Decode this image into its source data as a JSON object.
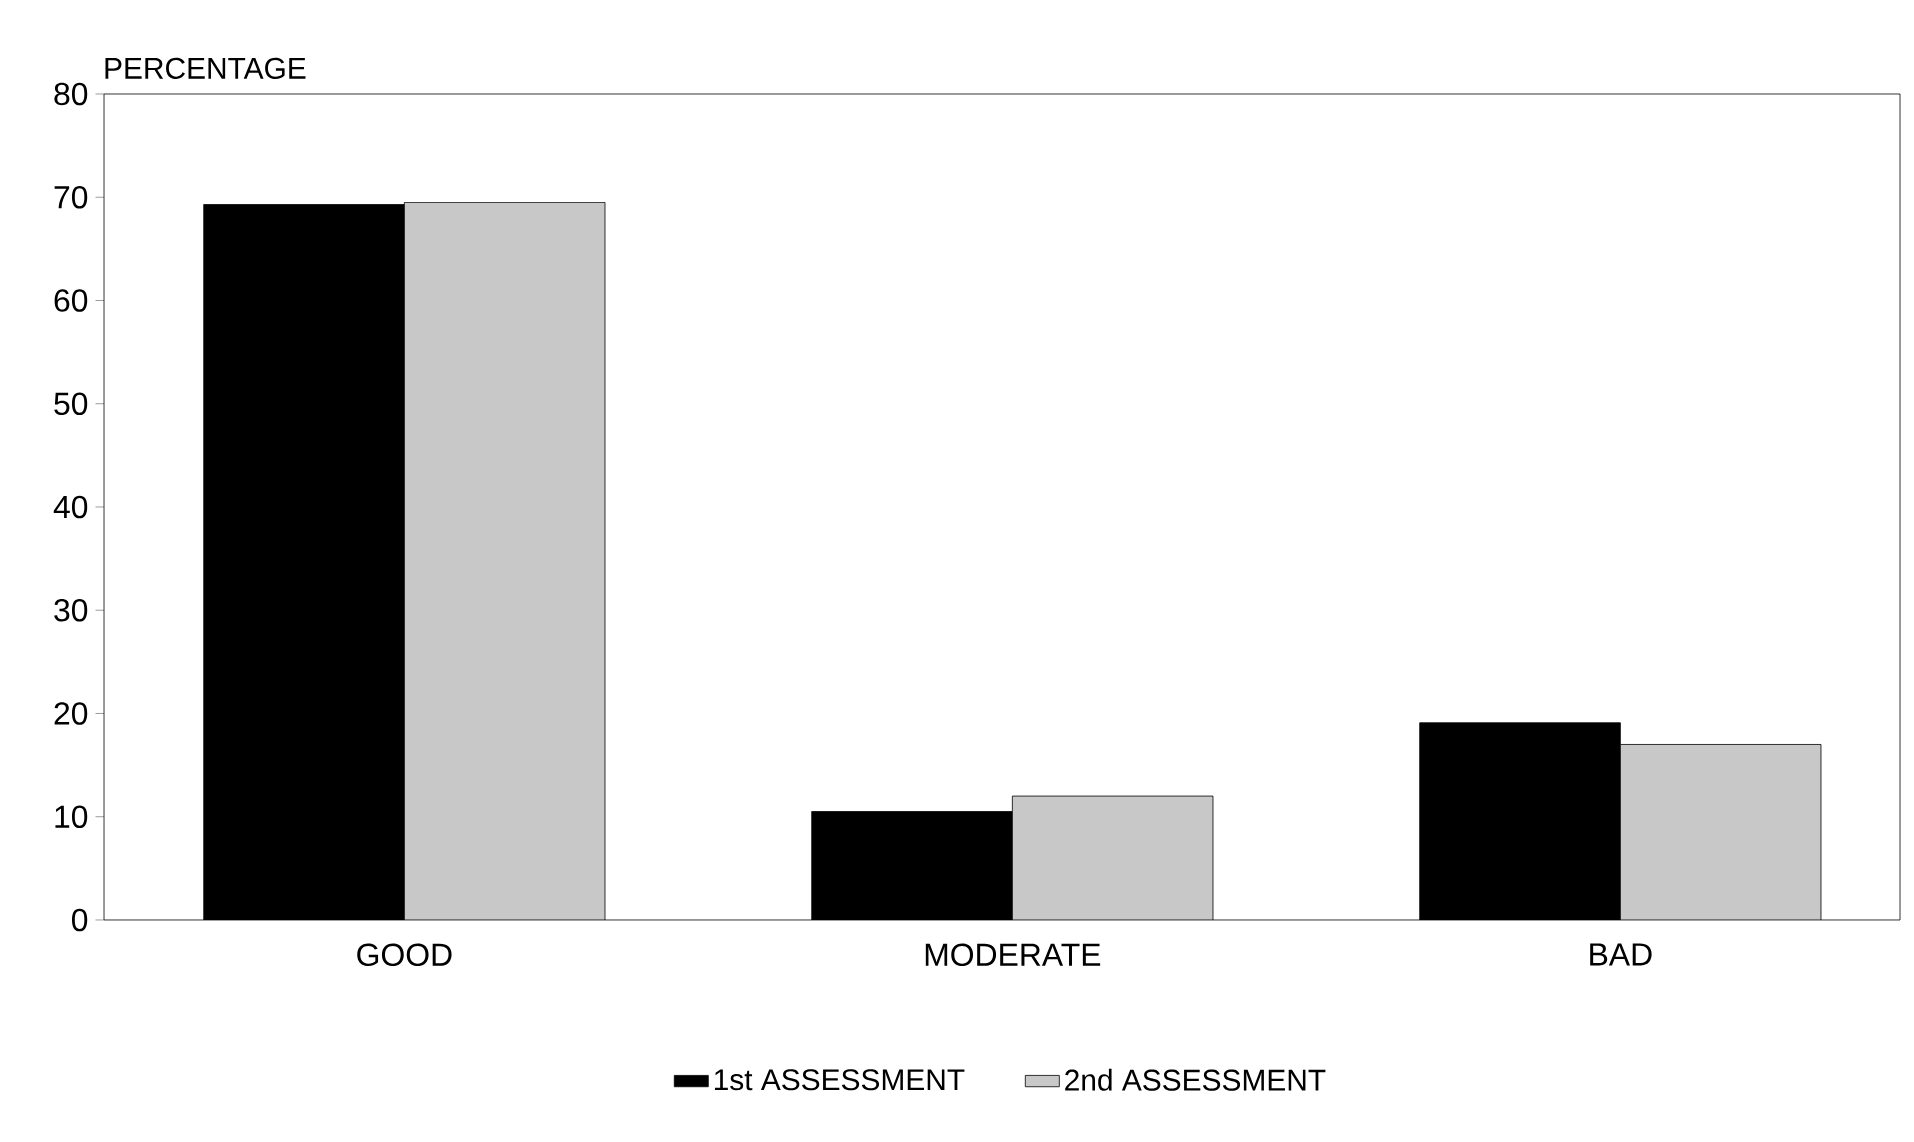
{
  "chart_data": {
    "type": "bar",
    "ylabel": "PERCENTAGE",
    "categories": [
      "GOOD",
      "MODERATE",
      "BAD"
    ],
    "series": [
      {
        "name": "1st ASSESSMENT",
        "color": "#000000",
        "values": [
          69.3,
          10.5,
          19.1
        ]
      },
      {
        "name": "2nd ASSESSMENT",
        "color": "#c8c8c8",
        "values": [
          69.5,
          12.0,
          17.0
        ]
      }
    ],
    "ylim": [
      0,
      80
    ],
    "yticks": [
      0,
      10,
      20,
      30,
      40,
      50,
      60,
      70,
      80
    ],
    "grid": false,
    "legend": "bottom"
  }
}
